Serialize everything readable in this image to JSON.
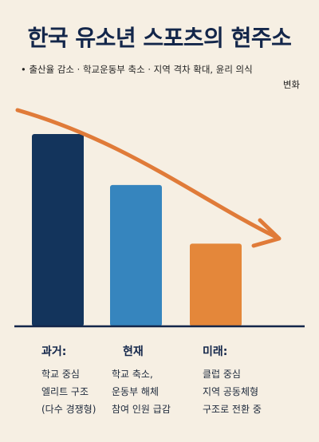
{
  "header": {
    "title": "한국 유소년 스포츠의 현주소",
    "subtitle_line1": "• 출산율 감소 · 학교운동부 축소 · 지역 격차 확대, 윤리 의식",
    "subtitle_line2": "변화"
  },
  "columns": [
    {
      "heading": "과거:",
      "lines": [
        "학교 중심",
        "엘리트 구조",
        "(다수 경쟁형)"
      ]
    },
    {
      "heading": "현재",
      "lines": [
        "학교 축소,",
        "운동부 해체",
        "참여 인원 급감"
      ]
    },
    {
      "heading": "미래:",
      "lines": [
        "클럽 중심",
        "지역 공동체형",
        "구조로 전환 중"
      ]
    }
  ],
  "colors": {
    "past": "#13345c",
    "present": "#3685be",
    "future": "#e4873a",
    "arrow": "#e07b39",
    "background": "#f6efe3"
  },
  "chart_data": {
    "type": "bar",
    "categories": [
      "과거",
      "현재",
      "미래"
    ],
    "values": [
      100,
      73.5,
      43
    ],
    "ylim": [
      0,
      100
    ],
    "bar_colors": [
      "#13345c",
      "#3685be",
      "#e4873a"
    ],
    "trend_arrow": "decreasing",
    "grid": false,
    "legend": "none"
  }
}
